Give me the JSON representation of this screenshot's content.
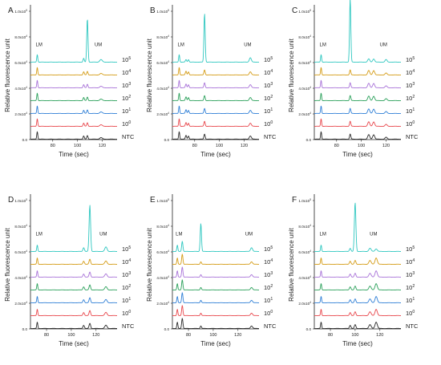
{
  "colors": {
    "series": [
      "#2a2a2a",
      "#e8474c",
      "#2f7fd6",
      "#2aa05a",
      "#a872d8",
      "#d49b14",
      "#2ec7c0"
    ],
    "axis": "#222222"
  },
  "chart_data": [
    {
      "panel": "A",
      "type": "line",
      "x_ticks": [
        "80",
        "100",
        "120"
      ],
      "x_range": [
        62,
        132
      ],
      "y_ticks": [
        "0.0",
        "2.0x10^4",
        "4.0x10^4",
        "6.0x10^4",
        "8.0x10^4",
        "1.0x10^5"
      ],
      "ylabel": "Relative fluorescence unit",
      "xlabel": "Time (sec)",
      "marker_labels": [
        "LM",
        "UM"
      ],
      "series_labels": [
        "NTC",
        "10^0",
        "10^1",
        "10^2",
        "10^3",
        "10^4",
        "10^5"
      ],
      "series_offsets": [
        0,
        10000,
        20000,
        30000,
        40000,
        50000,
        60000
      ],
      "peaks": [
        [
          67.5,
          6000,
          0.4
        ],
        [
          105,
          2500,
          0.5
        ],
        [
          108,
          2800,
          0.5
        ],
        [
          119,
          1200,
          1.0
        ]
      ],
      "peaks_top": [
        [
          67.5,
          6000,
          0.4
        ],
        [
          105,
          3000,
          0.5
        ],
        [
          108,
          36000,
          0.5
        ],
        [
          119,
          2000,
          1.0
        ]
      ],
      "top_peak_max": 94000
    },
    {
      "panel": "B",
      "type": "line",
      "x_ticks": [
        "80",
        "100",
        "120"
      ],
      "x_range": [
        62,
        132
      ],
      "y_ticks": [
        "0.0",
        "2.0x10^4",
        "4.0x10^4",
        "6.0x10^4",
        "8.0x10^4",
        "1.0x10^5"
      ],
      "ylabel": "Relative fluorescence unit",
      "xlabel": "Time (sec)",
      "marker_labels": [
        "LM",
        "UM"
      ],
      "series_labels": [
        "NTC",
        "10^0",
        "10^1",
        "10^2",
        "10^3",
        "10^4",
        "10^5"
      ],
      "series_offsets": [
        0,
        10000,
        20000,
        30000,
        40000,
        50000,
        60000
      ],
      "peaks": [
        [
          67.5,
          6000,
          0.4
        ],
        [
          73,
          3000,
          0.5
        ],
        [
          75,
          2500,
          0.5
        ],
        [
          88,
          4000,
          0.5
        ],
        [
          125,
          2500,
          0.8
        ]
      ],
      "peaks_top": [
        [
          67.5,
          6000,
          0.4
        ],
        [
          73,
          2000,
          0.5
        ],
        [
          75,
          2000,
          0.5
        ],
        [
          88,
          38000,
          0.5
        ],
        [
          125,
          3500,
          0.8
        ]
      ],
      "top_peak_max": 98000
    },
    {
      "panel": "C",
      "type": "line",
      "x_ticks": [
        "80",
        "100",
        "120"
      ],
      "x_range": [
        62,
        132
      ],
      "y_ticks": [
        "0.0",
        "2.0x10^4",
        "4.0x10^4",
        "6.0x10^4",
        "8.0x10^4",
        "1.0x10^5"
      ],
      "ylabel": "Relative fluorescence unit",
      "xlabel": "Time (sec)",
      "marker_labels": [
        "LM",
        "UM"
      ],
      "series_labels": [
        "NTC",
        "10^0",
        "10^1",
        "10^2",
        "10^3",
        "10^4",
        "10^5"
      ],
      "series_offsets": [
        0,
        10000,
        20000,
        30000,
        40000,
        50000,
        60000
      ],
      "peaks": [
        [
          67.5,
          6000,
          0.4
        ],
        [
          91,
          4000,
          0.5
        ],
        [
          106,
          3500,
          0.8
        ],
        [
          110,
          3500,
          0.8
        ],
        [
          120,
          1500,
          0.8
        ]
      ],
      "peaks_top": [
        [
          67.5,
          6000,
          0.4
        ],
        [
          91,
          50000,
          0.5
        ],
        [
          106,
          2500,
          0.8
        ],
        [
          110,
          2500,
          0.8
        ],
        [
          120,
          2000,
          0.8
        ]
      ],
      "top_peak_max": 110000
    },
    {
      "panel": "D",
      "type": "line",
      "x_ticks": [
        "80",
        "100",
        "120"
      ],
      "x_range": [
        67,
        137
      ],
      "y_ticks": [
        "0.0",
        "2.0x10^4",
        "4.0x10^4",
        "6.0x10^4",
        "8.0x10^4",
        "1.0x10^5"
      ],
      "ylabel": "Relative fluorescence unit",
      "xlabel": "Time (sec)",
      "marker_labels": [
        "LM",
        "UM"
      ],
      "series_labels": [
        "NTC",
        "10^0",
        "10^1",
        "10^2",
        "10^3",
        "10^4",
        "10^5"
      ],
      "series_offsets": [
        0,
        10000,
        20000,
        30000,
        40000,
        50000,
        60000
      ],
      "peaks": [
        [
          72.5,
          5000,
          0.4
        ],
        [
          110,
          2500,
          0.6
        ],
        [
          115,
          4000,
          0.6
        ],
        [
          128,
          2500,
          0.9
        ]
      ],
      "peaks_top": [
        [
          72.5,
          5000,
          0.4
        ],
        [
          110,
          3000,
          0.6
        ],
        [
          115,
          32000,
          0.6
        ],
        [
          128,
          3500,
          0.9
        ]
      ],
      "top_peak_max": 96000
    },
    {
      "panel": "E",
      "type": "line",
      "x_ticks": [
        "80",
        "100",
        "120"
      ],
      "x_range": [
        67,
        137
      ],
      "y_ticks": [
        "0.0",
        "2.0x10^4",
        "4.0x10^4",
        "6.0x10^4",
        "8.0x10^4",
        "1.0x10^5"
      ],
      "ylabel": "Relative fluorescence unit",
      "xlabel": "Time (sec)",
      "marker_labels": [
        "LM",
        "UM"
      ],
      "series_labels": [
        "NTC",
        "10^0",
        "10^1",
        "10^2",
        "10^3",
        "10^4",
        "10^5"
      ],
      "series_offsets": [
        0,
        10000,
        20000,
        30000,
        40000,
        50000,
        60000
      ],
      "peaks": [
        [
          71,
          5000,
          0.4
        ],
        [
          75,
          8000,
          0.5
        ],
        [
          90,
          2000,
          0.5
        ],
        [
          131,
          2000,
          0.8
        ]
      ],
      "peaks_top": [
        [
          71,
          5000,
          0.4
        ],
        [
          75,
          8000,
          0.5
        ],
        [
          90,
          12000,
          0.5
        ],
        [
          131,
          3000,
          0.8
        ]
      ],
      "top_peak_max": 82000
    },
    {
      "panel": "F",
      "type": "line",
      "x_ticks": [
        "80",
        "100",
        "120"
      ],
      "x_range": [
        67,
        137
      ],
      "y_ticks": [
        "0.0",
        "2.0x10^4",
        "4.0x10^4",
        "6.0x10^4",
        "8.0x10^4",
        "1.0x10^5"
      ],
      "ylabel": "Relative fluorescence unit",
      "xlabel": "Time (sec)",
      "marker_labels": [
        "LM",
        "UM"
      ],
      "series_labels": [
        "NTC",
        "10^0",
        "10^1",
        "10^2",
        "10^3",
        "10^4",
        "10^5"
      ],
      "series_offsets": [
        0,
        10000,
        20000,
        30000,
        40000,
        50000,
        60000
      ],
      "peaks": [
        [
          72.5,
          5000,
          0.4
        ],
        [
          96,
          2500,
          0.6
        ],
        [
          100,
          3000,
          0.6
        ],
        [
          112,
          3000,
          0.9
        ],
        [
          117,
          5000,
          0.9
        ]
      ],
      "peaks_top": [
        [
          72.5,
          5000,
          0.4
        ],
        [
          96,
          2500,
          0.6
        ],
        [
          100,
          36000,
          0.6
        ],
        [
          112,
          2500,
          0.9
        ],
        [
          117,
          2000,
          0.9
        ]
      ],
      "top_peak_max": 98000
    }
  ]
}
